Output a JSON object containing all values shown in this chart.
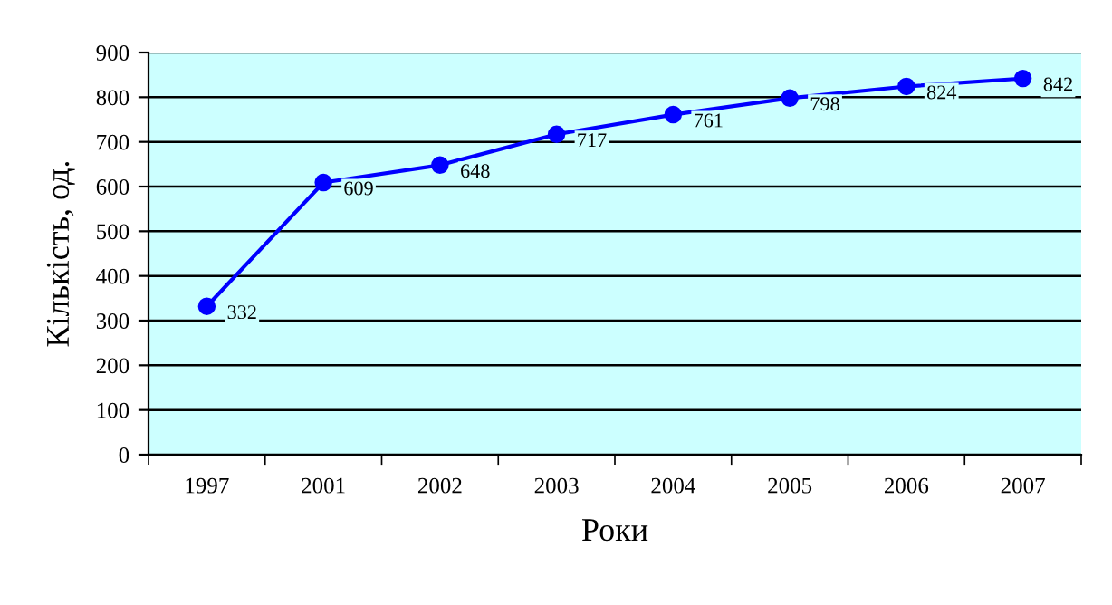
{
  "chart_data": {
    "type": "line",
    "xlabel": "Роки",
    "ylabel": "Кількість, од.",
    "categories": [
      "1997",
      "2001",
      "2002",
      "2003",
      "2004",
      "2005",
      "2006",
      "2007"
    ],
    "series": [
      {
        "color": "#0000ff",
        "values": [
          332,
          609,
          648,
          717,
          761,
          798,
          824,
          842
        ]
      }
    ],
    "ylim": [
      0,
      900
    ],
    "yticks": [
      0,
      100,
      200,
      300,
      400,
      500,
      600,
      700,
      800,
      900
    ],
    "grid": "y",
    "marker": "circle",
    "line_style": "solid",
    "data_labels": true,
    "legend": false
  }
}
